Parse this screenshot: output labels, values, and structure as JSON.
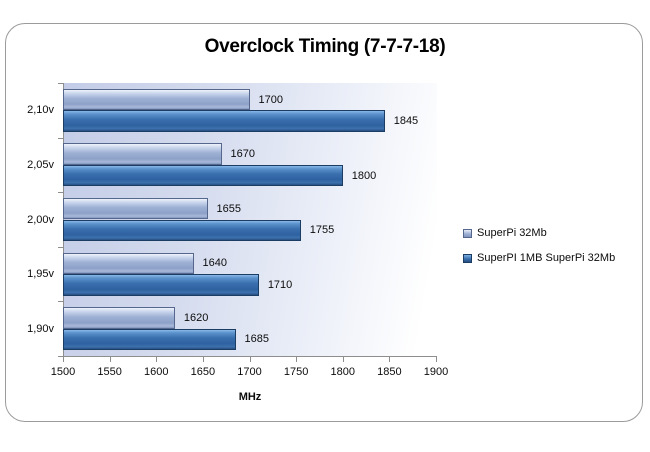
{
  "chart_data": {
    "type": "bar",
    "orientation": "horizontal",
    "title": "Overclock Timing (7-7-7-18)",
    "xlabel": "MHz",
    "xlim": [
      1500,
      1900
    ],
    "x_ticks": [
      1500,
      1550,
      1600,
      1650,
      1700,
      1750,
      1800,
      1850,
      1900
    ],
    "categories_top_to_bottom": [
      "2,10v",
      "2,05v",
      "2,00v",
      "1,95v",
      "1,90v"
    ],
    "series": [
      {
        "name": "SuperPi 32Mb",
        "color": "#9db0d4",
        "values": [
          1700,
          1670,
          1655,
          1640,
          1620
        ]
      },
      {
        "name": "SuperPI 1MB SuperPi 32Mb",
        "color": "#3a6fae",
        "values": [
          1845,
          1800,
          1755,
          1710,
          1685
        ]
      }
    ],
    "data_labels": true,
    "grid": false,
    "legend_position": "right",
    "accent_colors": {
      "light_series": "#9db0d4",
      "dark_series": "#3a6fae",
      "axis": "#8e8e8e",
      "plot_bg_left": "#c3cce7",
      "plot_bg_right": "#ffffff"
    }
  }
}
